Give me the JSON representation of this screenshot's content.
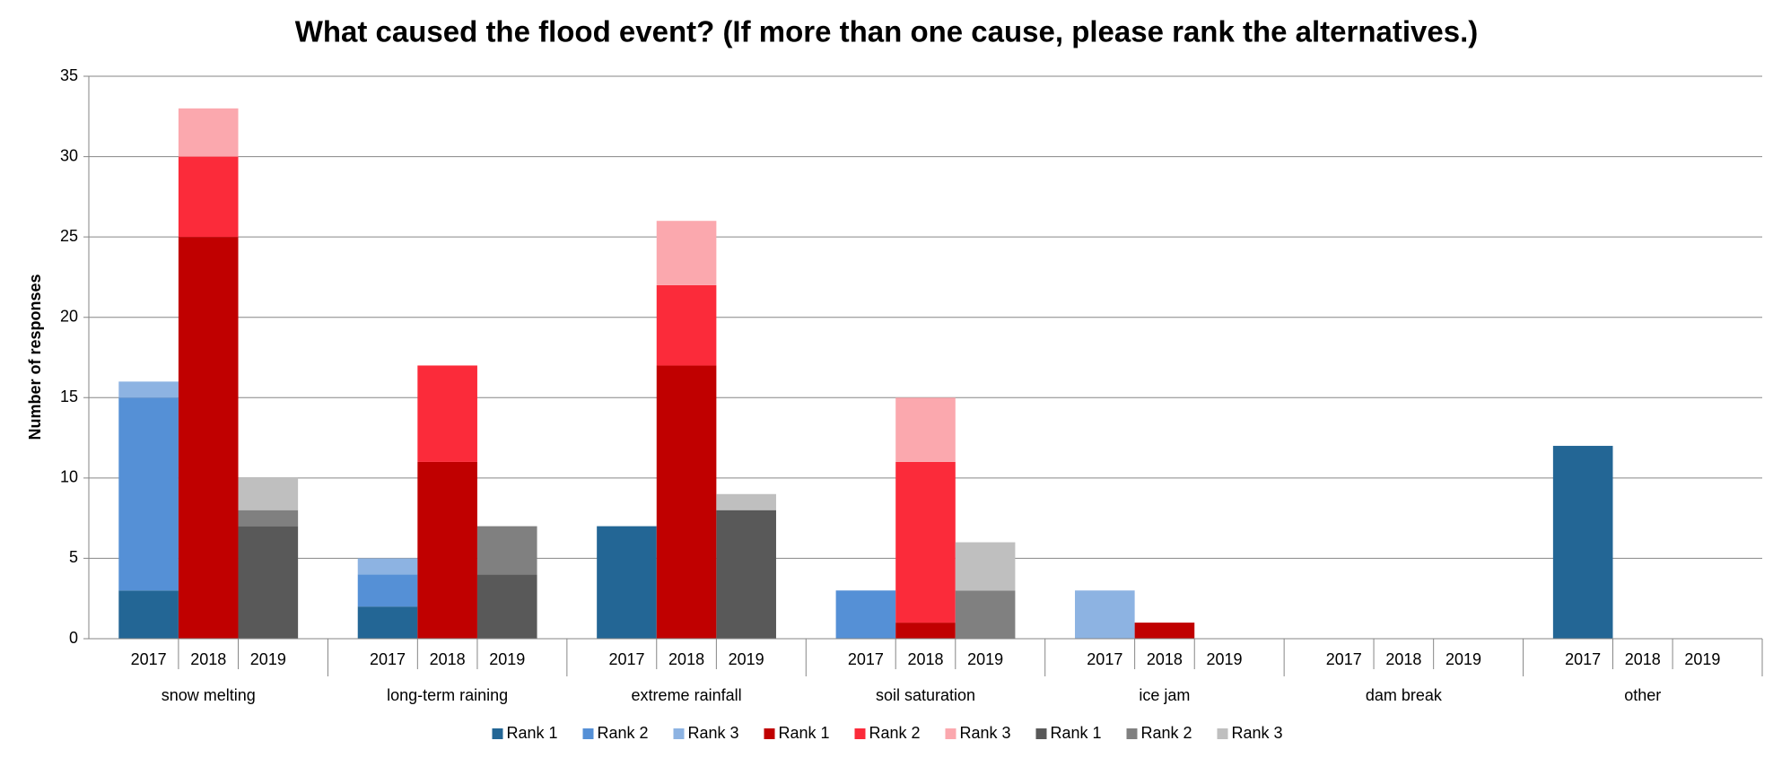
{
  "chart_data": {
    "type": "grouped-stacked-bar",
    "title": "What caused the flood event? (If more than one cause, please rank the alternatives.)",
    "y_label": "Number of responses",
    "categories": [
      "snow melting",
      "long-term raining",
      "extreme rainfall",
      "soil saturation",
      "ice jam",
      "dam break",
      "other"
    ],
    "ylim": [
      0,
      35
    ],
    "yticks": [
      0,
      5,
      10,
      15,
      20,
      25,
      30,
      35
    ],
    "grid": true,
    "legend": "bottom",
    "stacks": [
      {
        "name": "2017",
        "series": [
          {
            "name": "Rank 1",
            "color": "#236695",
            "values": [
              3,
              2,
              7,
              0,
              0,
              0,
              12
            ]
          },
          {
            "name": "Rank 2",
            "color": "#5590d6",
            "values": [
              12,
              2,
              0,
              3,
              0,
              0,
              0
            ]
          },
          {
            "name": "Rank 3",
            "color": "#8db3e2",
            "values": [
              1,
              1,
              0,
              0,
              3,
              0,
              0
            ]
          }
        ]
      },
      {
        "name": "2018",
        "series": [
          {
            "name": "Rank 1",
            "color": "#c00000",
            "values": [
              25,
              11,
              17,
              1,
              1,
              0,
              0
            ]
          },
          {
            "name": "Rank 2",
            "color": "#fb2b3a",
            "values": [
              5,
              6,
              5,
              10,
              0,
              0,
              0
            ]
          },
          {
            "name": "Rank 3",
            "color": "#fba8ae",
            "values": [
              3,
              0,
              4,
              4,
              0,
              0,
              0
            ]
          }
        ]
      },
      {
        "name": "2019",
        "series": [
          {
            "name": "Rank 1",
            "color": "#595959",
            "values": [
              7,
              4,
              8,
              0,
              0,
              0,
              0
            ]
          },
          {
            "name": "Rank 2",
            "color": "#808080",
            "values": [
              1,
              3,
              0,
              3,
              0,
              0,
              0
            ]
          },
          {
            "name": "Rank 3",
            "color": "#bfbfbf",
            "values": [
              2,
              0,
              1,
              3,
              0,
              0,
              0
            ]
          }
        ]
      }
    ]
  }
}
